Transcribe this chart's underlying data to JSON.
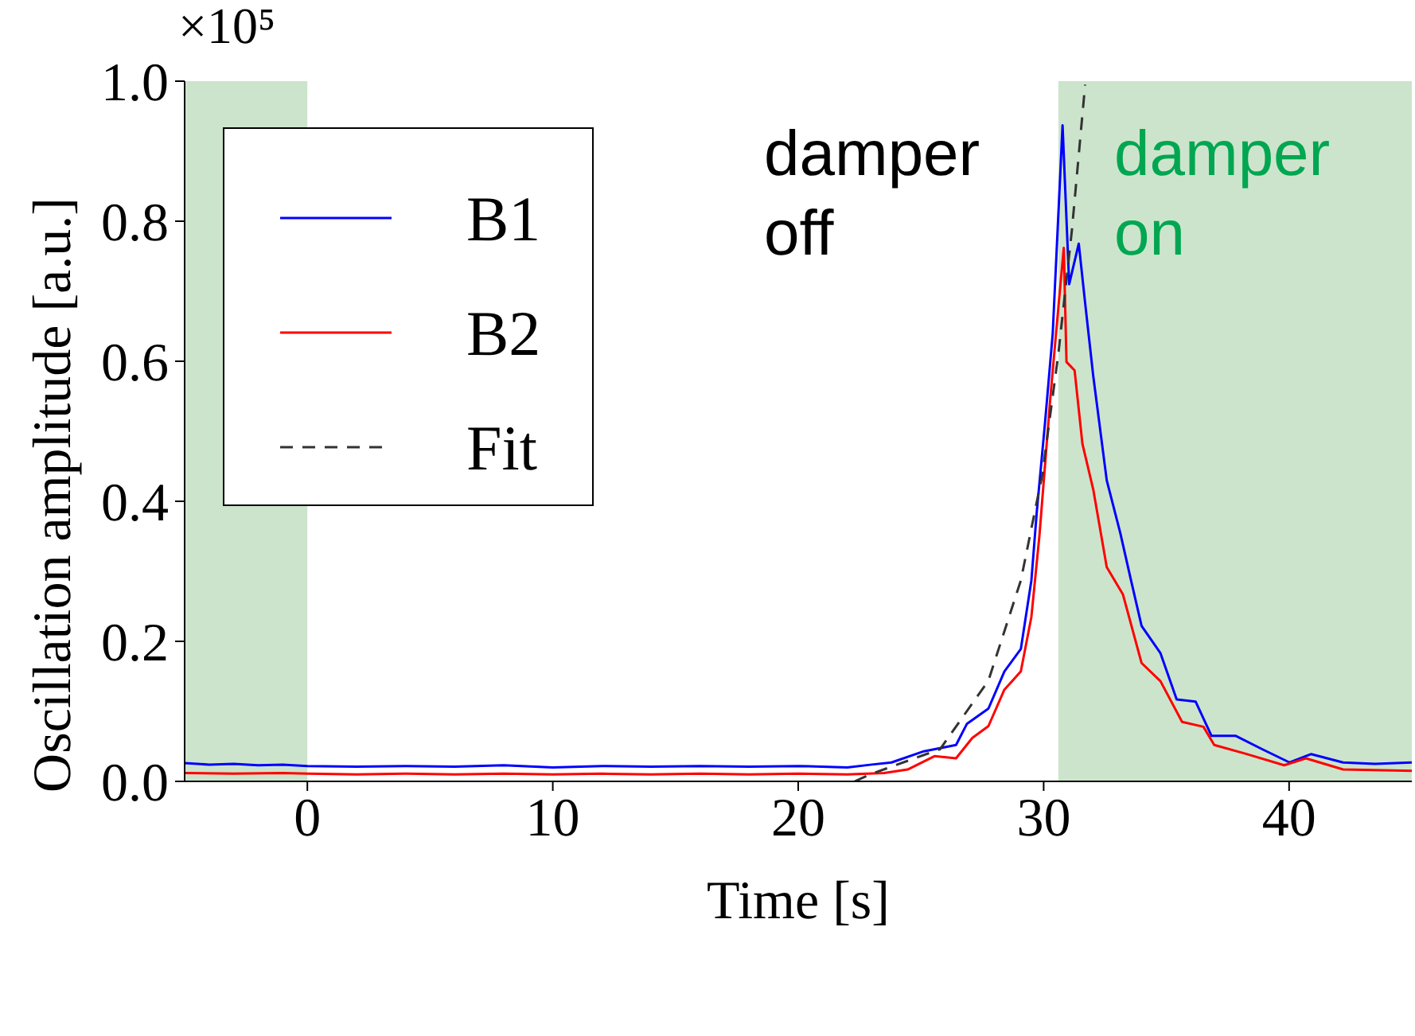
{
  "chart_data": {
    "type": "line",
    "xlabel": "Time [s]",
    "ylabel": "Oscillation amplitude [a.u.]",
    "xlim": [
      -5,
      45
    ],
    "xticks": [
      0,
      10,
      20,
      30,
      40
    ],
    "ylim": [
      0,
      1
    ],
    "yticks": [
      {
        "value": 0,
        "label": "0.0"
      },
      0.2,
      0.4,
      0.6,
      0.8,
      {
        "value": 1,
        "label": "1.0"
      }
    ],
    "legend": "top left",
    "marker": "none",
    "annotations": [
      "×10⁵",
      "damper off",
      "damper on"
    ],
    "bands": [
      {
        "axis": "x",
        "from": -5,
        "to": 0,
        "color": "#cde4cc"
      },
      {
        "axis": "x",
        "from": 30.6,
        "to": 45,
        "color": "#cde4cc"
      }
    ],
    "series": [
      {
        "name": "B1",
        "color": "#0000ff",
        "x": [
          -5,
          -4,
          -3,
          -2,
          -1,
          0,
          2,
          4,
          6,
          8,
          10,
          12,
          14,
          16,
          18,
          20,
          22,
          23,
          23.8,
          25.12,
          26.43,
          26.87,
          27.75,
          28.4,
          29.07,
          29.5,
          29.72,
          30.05,
          30.37,
          30.77,
          31.04,
          31.43,
          31.69,
          32.02,
          32.57,
          33.12,
          33.56,
          33.99,
          34.76,
          35.42,
          36.19,
          36.84,
          37.83,
          38.9,
          40.02,
          40.9,
          42.2,
          43.5,
          45
        ],
        "values": [
          0.026,
          0.024,
          0.025,
          0.023,
          0.024,
          0.022,
          0.021,
          0.022,
          0.021,
          0.023,
          0.02,
          0.022,
          0.021,
          0.022,
          0.021,
          0.022,
          0.02,
          0.024,
          0.027,
          0.043,
          0.052,
          0.082,
          0.104,
          0.157,
          0.189,
          0.287,
          0.385,
          0.51,
          0.64,
          0.937,
          0.71,
          0.768,
          0.683,
          0.579,
          0.43,
          0.355,
          0.287,
          0.222,
          0.183,
          0.117,
          0.114,
          0.065,
          0.065,
          0.046,
          0.027,
          0.039,
          0.027,
          0.025,
          0.027
        ]
      },
      {
        "name": "B2",
        "color": "#ff0000",
        "x": [
          -5,
          -3,
          -1,
          0,
          2,
          4,
          6,
          8,
          10,
          12,
          14,
          16,
          18,
          20,
          22,
          23.5,
          24.46,
          25.55,
          26.43,
          27.09,
          27.75,
          28.4,
          29.07,
          29.5,
          29.83,
          30.27,
          30.6,
          30.82,
          30.93,
          31.26,
          31.58,
          32.02,
          32.57,
          33.23,
          33.99,
          34.76,
          35.64,
          36.51,
          36.95,
          38.27,
          39.8,
          40.68,
          42.2,
          45
        ],
        "values": [
          0.012,
          0.011,
          0.012,
          0.011,
          0.01,
          0.011,
          0.01,
          0.011,
          0.01,
          0.011,
          0.01,
          0.011,
          0.01,
          0.011,
          0.01,
          0.012,
          0.017,
          0.036,
          0.033,
          0.062,
          0.079,
          0.131,
          0.157,
          0.235,
          0.352,
          0.547,
          0.677,
          0.762,
          0.599,
          0.587,
          0.482,
          0.417,
          0.306,
          0.267,
          0.169,
          0.143,
          0.085,
          0.078,
          0.052,
          0.039,
          0.023,
          0.033,
          0.017,
          0.015
        ]
      },
      {
        "name": "Fit",
        "color": "#333333",
        "line_style": "dashed",
        "x": [
          22.3,
          22.93,
          25.78,
          27.75,
          29.07,
          29.94,
          30.6,
          31.15,
          31.69
        ],
        "values": [
          0.0,
          0.01,
          0.046,
          0.144,
          0.287,
          0.437,
          0.611,
          0.787,
          0.995
        ]
      }
    ]
  }
}
